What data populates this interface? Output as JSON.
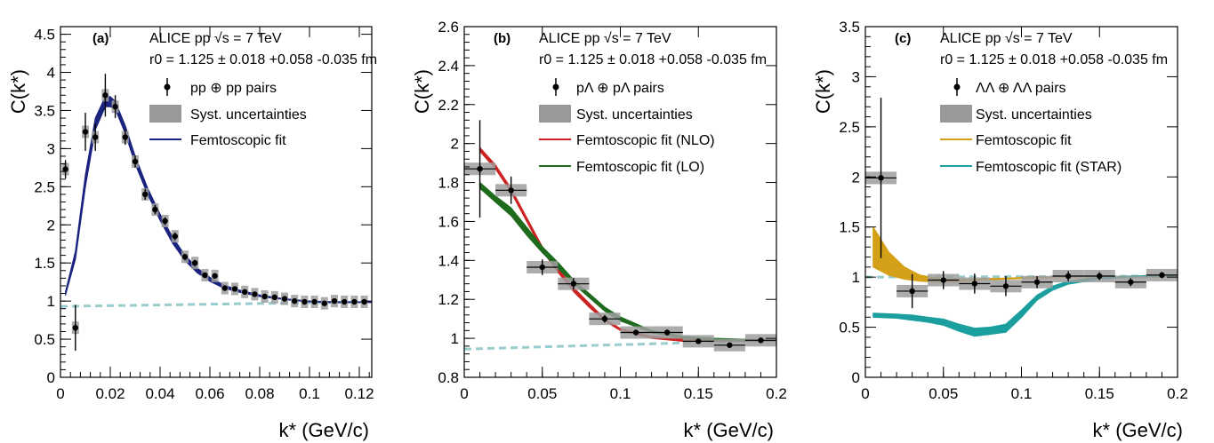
{
  "chart_data": [
    {
      "type": "scatter",
      "panel_label": "(a)",
      "header": {
        "line1": "ALICE pp √s = 7 TeV",
        "line2": "r0 = 1.125 ± 0.018 +0.058 -0.035 fm"
      },
      "xlabel": "k* (GeV/c)",
      "ylabel": "C(k*)",
      "xlim": [
        0,
        0.125
      ],
      "ylim": [
        0,
        4.6
      ],
      "xticks": [
        "0",
        "0.02",
        "0.04",
        "0.06",
        "0.08",
        "0.1",
        "0.12"
      ],
      "yticks": [
        "0",
        "0.5",
        "1",
        "1.5",
        "2",
        "2.5",
        "3",
        "3.5",
        "4",
        "4.5"
      ],
      "legend": [
        {
          "kind": "marker",
          "label": "pp ⊕ pp pairs"
        },
        {
          "kind": "box",
          "label": "Syst. uncertainties"
        },
        {
          "kind": "line",
          "label": "Femtoscopic fit",
          "color": "#1a237e"
        }
      ],
      "points": [
        {
          "x": 0.002,
          "y": 2.73,
          "err": 0.12,
          "xerr": 0
        },
        {
          "x": 0.006,
          "y": 0.65,
          "err": 0.3,
          "xerr": 0
        },
        {
          "x": 0.01,
          "y": 3.22,
          "err": 0.25,
          "xerr": 0
        },
        {
          "x": 0.014,
          "y": 3.15,
          "err": 0.18,
          "xerr": 0
        },
        {
          "x": 0.018,
          "y": 3.7,
          "err": 0.28,
          "xerr": 0
        },
        {
          "x": 0.022,
          "y": 3.55,
          "err": 0.15,
          "xerr": 0
        },
        {
          "x": 0.026,
          "y": 3.15,
          "err": 0.1,
          "xerr": 0
        },
        {
          "x": 0.03,
          "y": 2.83,
          "err": 0.08,
          "xerr": 0
        },
        {
          "x": 0.034,
          "y": 2.4,
          "err": 0.07,
          "xerr": 0
        },
        {
          "x": 0.038,
          "y": 2.2,
          "err": 0.06,
          "xerr": 0
        },
        {
          "x": 0.042,
          "y": 2.05,
          "err": 0.05,
          "xerr": 0
        },
        {
          "x": 0.046,
          "y": 1.85,
          "err": 0.05,
          "xerr": 0
        },
        {
          "x": 0.05,
          "y": 1.58,
          "err": 0.04,
          "xerr": 0
        },
        {
          "x": 0.054,
          "y": 1.5,
          "err": 0.04,
          "xerr": 0
        },
        {
          "x": 0.058,
          "y": 1.34,
          "err": 0.03,
          "xerr": 0
        },
        {
          "x": 0.062,
          "y": 1.33,
          "err": 0.03,
          "xerr": 0
        },
        {
          "x": 0.066,
          "y": 1.17,
          "err": 0.03,
          "xerr": 0
        },
        {
          "x": 0.07,
          "y": 1.16,
          "err": 0.02,
          "xerr": 0
        },
        {
          "x": 0.074,
          "y": 1.12,
          "err": 0.02,
          "xerr": 0
        },
        {
          "x": 0.078,
          "y": 1.09,
          "err": 0.02,
          "xerr": 0
        },
        {
          "x": 0.082,
          "y": 1.06,
          "err": 0.02,
          "xerr": 0
        },
        {
          "x": 0.086,
          "y": 1.05,
          "err": 0.02,
          "xerr": 0
        },
        {
          "x": 0.09,
          "y": 1.03,
          "err": 0.02,
          "xerr": 0
        },
        {
          "x": 0.094,
          "y": 1.0,
          "err": 0.02,
          "xerr": 0
        },
        {
          "x": 0.098,
          "y": 0.99,
          "err": 0.02,
          "xerr": 0
        },
        {
          "x": 0.102,
          "y": 0.99,
          "err": 0.02,
          "xerr": 0
        },
        {
          "x": 0.106,
          "y": 0.97,
          "err": 0.02,
          "xerr": 0
        },
        {
          "x": 0.11,
          "y": 1.0,
          "err": 0.02,
          "xerr": 0
        },
        {
          "x": 0.114,
          "y": 0.99,
          "err": 0.02,
          "xerr": 0
        },
        {
          "x": 0.118,
          "y": 0.99,
          "err": 0.02,
          "xerr": 0
        },
        {
          "x": 0.122,
          "y": 0.99,
          "err": 0.02,
          "xerr": 0
        }
      ],
      "bands": [
        {
          "color": "#1a237e",
          "x": [
            0.002,
            0.006,
            0.01,
            0.014,
            0.018,
            0.02,
            0.022,
            0.026,
            0.03,
            0.035,
            0.04,
            0.045,
            0.05,
            0.055,
            0.06,
            0.065,
            0.07,
            0.08,
            0.09,
            0.1,
            0.11,
            0.125
          ],
          "lo": [
            1.08,
            1.55,
            2.5,
            3.25,
            3.55,
            3.55,
            3.52,
            3.2,
            2.8,
            2.4,
            2.06,
            1.76,
            1.53,
            1.37,
            1.26,
            1.18,
            1.13,
            1.06,
            1.02,
            0.99,
            0.98,
            0.98
          ],
          "hi": [
            1.12,
            1.65,
            2.65,
            3.4,
            3.68,
            3.68,
            3.62,
            3.3,
            2.9,
            2.48,
            2.14,
            1.84,
            1.6,
            1.43,
            1.31,
            1.22,
            1.16,
            1.08,
            1.03,
            1.0,
            0.99,
            0.99
          ]
        }
      ],
      "baseline": {
        "x": [
          0,
          0.125
        ],
        "y": [
          0.93,
          0.99
        ],
        "color": "#99cccc"
      }
    },
    {
      "type": "scatter",
      "panel_label": "(b)",
      "header": {
        "line1": "ALICE pp √s = 7 TeV",
        "line2": "r0 = 1.125 ± 0.018 +0.058 -0.035 fm"
      },
      "xlabel": "k* (GeV/c)",
      "ylabel": "C(k*)",
      "xlim": [
        0,
        0.2
      ],
      "ylim": [
        0.8,
        2.6
      ],
      "xticks": [
        "0",
        "0.05",
        "0.1",
        "0.15",
        "0.2"
      ],
      "yticks": [
        "0.8",
        "1",
        "1.2",
        "1.4",
        "1.6",
        "1.8",
        "2",
        "2.2",
        "2.4",
        "2.6"
      ],
      "legend": [
        {
          "kind": "marker",
          "label": "pΛ ⊕ pΛ pairs"
        },
        {
          "kind": "box",
          "label": "Syst. uncertainties"
        },
        {
          "kind": "line",
          "label": "Femtoscopic fit (NLO)",
          "color": "#cc2222"
        },
        {
          "kind": "line",
          "label": "Femtoscopic fit (LO)",
          "color": "#1e6b1e"
        }
      ],
      "points": [
        {
          "x": 0.01,
          "y": 1.87,
          "err": 0.25,
          "xerr": 0.01
        },
        {
          "x": 0.03,
          "y": 1.76,
          "err": 0.07,
          "xerr": 0.01
        },
        {
          "x": 0.05,
          "y": 1.365,
          "err": 0.04,
          "xerr": 0.01
        },
        {
          "x": 0.07,
          "y": 1.28,
          "err": 0.03,
          "xerr": 0.01
        },
        {
          "x": 0.09,
          "y": 1.1,
          "err": 0.02,
          "xerr": 0.01
        },
        {
          "x": 0.11,
          "y": 1.03,
          "err": 0.015,
          "xerr": 0.01
        },
        {
          "x": 0.13,
          "y": 1.03,
          "err": 0.015,
          "xerr": 0.01
        },
        {
          "x": 0.15,
          "y": 0.985,
          "err": 0.01,
          "xerr": 0.01
        },
        {
          "x": 0.17,
          "y": 0.965,
          "err": 0.01,
          "xerr": 0.01
        },
        {
          "x": 0.19,
          "y": 0.99,
          "err": 0.01,
          "xerr": 0.01
        }
      ],
      "bands": [
        {
          "color": "#cc2222",
          "x": [
            0.01,
            0.02,
            0.03,
            0.04,
            0.05,
            0.06,
            0.07,
            0.08,
            0.09,
            0.1,
            0.12,
            0.14,
            0.16,
            0.18,
            0.2
          ],
          "lo": [
            1.96,
            1.87,
            1.75,
            1.6,
            1.45,
            1.34,
            1.24,
            1.16,
            1.09,
            1.04,
            1.0,
            0.985,
            0.985,
            0.985,
            0.985
          ],
          "hi": [
            1.98,
            1.89,
            1.77,
            1.62,
            1.47,
            1.36,
            1.26,
            1.18,
            1.1,
            1.05,
            1.01,
            0.995,
            0.99,
            0.99,
            0.99
          ]
        },
        {
          "color": "#1e6b1e",
          "x": [
            0.01,
            0.02,
            0.03,
            0.04,
            0.05,
            0.06,
            0.07,
            0.08,
            0.09,
            0.1,
            0.12,
            0.14,
            0.16,
            0.18,
            0.2
          ],
          "lo": [
            1.77,
            1.7,
            1.63,
            1.53,
            1.44,
            1.36,
            1.28,
            1.21,
            1.14,
            1.09,
            1.03,
            1.0,
            0.99,
            0.985,
            0.985
          ],
          "hi": [
            1.8,
            1.73,
            1.67,
            1.57,
            1.47,
            1.39,
            1.3,
            1.23,
            1.16,
            1.11,
            1.04,
            1.01,
            1.0,
            0.995,
            0.99
          ]
        }
      ],
      "baseline": {
        "x": [
          0,
          0.2
        ],
        "y": [
          0.945,
          0.99
        ],
        "color": "#99cccc"
      }
    },
    {
      "type": "scatter",
      "panel_label": "(c)",
      "header": {
        "line1": "ALICE pp √s = 7 TeV",
        "line2": "r0 = 1.125 ± 0.018 +0.058 -0.035 fm"
      },
      "xlabel": "k* (GeV/c)",
      "ylabel": "C(k*)",
      "xlim": [
        0,
        0.2
      ],
      "ylim": [
        0,
        3.5
      ],
      "xticks": [
        "0",
        "0.05",
        "0.1",
        "0.15",
        "0.2"
      ],
      "yticks": [
        "0",
        "0.5",
        "1",
        "1.5",
        "2",
        "2.5",
        "3",
        "3.5"
      ],
      "legend": [
        {
          "kind": "marker",
          "label": "ΛΛ ⊕ ΛΛ pairs"
        },
        {
          "kind": "box",
          "label": "Syst. uncertainties"
        },
        {
          "kind": "line",
          "label": "Femtoscopic fit",
          "color": "#d4a017"
        },
        {
          "kind": "line",
          "label": "Femtoscopic fit (STAR)",
          "color": "#1a9e9e"
        }
      ],
      "points": [
        {
          "x": 0.01,
          "y": 1.99,
          "err": 0.8,
          "xerr": 0.01
        },
        {
          "x": 0.03,
          "y": 0.86,
          "err": 0.17,
          "xerr": 0.01
        },
        {
          "x": 0.05,
          "y": 0.97,
          "err": 0.09,
          "xerr": 0.01
        },
        {
          "x": 0.07,
          "y": 0.935,
          "err": 0.1,
          "xerr": 0.01
        },
        {
          "x": 0.09,
          "y": 0.91,
          "err": 0.1,
          "xerr": 0.01
        },
        {
          "x": 0.11,
          "y": 0.95,
          "err": 0.06,
          "xerr": 0.01
        },
        {
          "x": 0.13,
          "y": 1.01,
          "err": 0.05,
          "xerr": 0.01
        },
        {
          "x": 0.15,
          "y": 1.01,
          "err": 0.04,
          "xerr": 0.01
        },
        {
          "x": 0.17,
          "y": 0.95,
          "err": 0.04,
          "xerr": 0.01
        },
        {
          "x": 0.19,
          "y": 1.02,
          "err": 0.03,
          "xerr": 0.01
        }
      ],
      "bands": [
        {
          "color": "#d4a017",
          "x": [
            0.005,
            0.015,
            0.025,
            0.035,
            0.045,
            0.055,
            0.065,
            0.075,
            0.09,
            0.11,
            0.13,
            0.15,
            0.17,
            0.2
          ],
          "lo": [
            1.1,
            1.02,
            0.98,
            0.96,
            0.95,
            0.95,
            0.96,
            0.97,
            0.98,
            0.99,
            1.0,
            1.0,
            1.0,
            1.0
          ],
          "hi": [
            1.5,
            1.25,
            1.1,
            1.02,
            0.99,
            0.98,
            0.98,
            0.985,
            0.99,
            1.0,
            1.0,
            1.0,
            1.01,
            1.01
          ]
        },
        {
          "color": "#1a9e9e",
          "x": [
            0.005,
            0.02,
            0.03,
            0.04,
            0.05,
            0.06,
            0.07,
            0.08,
            0.09,
            0.1,
            0.11,
            0.12,
            0.13,
            0.15,
            0.17,
            0.2
          ],
          "lo": [
            0.6,
            0.59,
            0.57,
            0.55,
            0.52,
            0.46,
            0.41,
            0.43,
            0.45,
            0.6,
            0.77,
            0.87,
            0.93,
            0.98,
            1.0,
            1.01
          ],
          "hi": [
            0.64,
            0.63,
            0.62,
            0.6,
            0.58,
            0.53,
            0.49,
            0.5,
            0.53,
            0.67,
            0.82,
            0.91,
            0.96,
            1.0,
            1.01,
            1.02
          ]
        }
      ],
      "baseline": {
        "x": [
          0,
          0.2
        ],
        "y": [
          1.0,
          1.01
        ],
        "color": "#99cccc"
      }
    }
  ]
}
